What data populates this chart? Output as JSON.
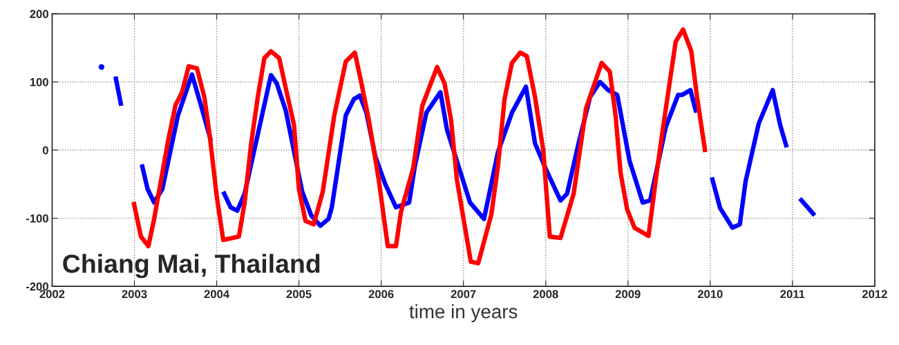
{
  "chart_data": {
    "type": "line",
    "xlabel": "time in years",
    "annotations": [
      "Chiang Mai, Thailand"
    ],
    "xlim": [
      2002,
      2012
    ],
    "xticks": [
      2002,
      2003,
      2004,
      2005,
      2006,
      2007,
      2008,
      2009,
      2010,
      2011,
      2012
    ],
    "ylim": [
      -200,
      200
    ],
    "yticks": [
      -200,
      -100,
      0,
      100,
      200
    ],
    "grid": true,
    "line_style": "solid",
    "series": [
      {
        "color": "#0000ff",
        "x": [
          2002.6,
          2002.68,
          2002.77,
          2002.84,
          2002.95,
          2003.09,
          2003.16,
          2003.24,
          2003.34,
          2003.53,
          2003.7,
          2003.82,
          2003.93,
          2004.0,
          2004.08,
          2004.17,
          2004.25,
          2004.34,
          2004.66,
          2004.73,
          2004.84,
          2005.04,
          2005.15,
          2005.26,
          2005.36,
          2005.4,
          2005.57,
          2005.67,
          2005.74,
          2005.82,
          2005.93,
          2006.05,
          2006.18,
          2006.34,
          2006.41,
          2006.55,
          2006.72,
          2006.8,
          2006.92,
          2007.08,
          2007.25,
          2007.42,
          2007.59,
          2007.76,
          2007.87,
          2008.01,
          2008.18,
          2008.26,
          2008.4,
          2008.54,
          2008.66,
          2008.76,
          2008.87,
          2009.02,
          2009.18,
          2009.27,
          2009.46,
          2009.61,
          2009.66,
          2009.76,
          2009.83,
          2009.92,
          2010.02,
          2010.12,
          2010.27,
          2010.36,
          2010.43,
          2010.59,
          2010.76,
          2010.85,
          2010.93,
          2011.0,
          2011.09,
          2011.27
        ],
        "values": [
          122,
          null,
          108,
          65,
          null,
          -21,
          -57,
          -77,
          -57,
          51,
          111,
          61,
          14,
          null,
          -61,
          -84,
          -89,
          -64,
          110,
          98,
          58,
          -61,
          -96,
          -111,
          -101,
          -84,
          51,
          75,
          80,
          55,
          -10,
          -50,
          -84,
          -77,
          -23,
          55,
          85,
          30,
          -16,
          -77,
          -101,
          -3,
          55,
          93,
          10,
          -30,
          -74,
          -64,
          10,
          78,
          100,
          88,
          81,
          -16,
          -77,
          -74,
          34,
          81,
          81,
          88,
          55,
          null,
          -40,
          -85,
          -114,
          -109,
          -46,
          39,
          88,
          37,
          4,
          null,
          -71,
          -96
        ]
      },
      {
        "color": "#ff0000",
        "x": [
          2002.99,
          2003.08,
          2003.17,
          2003.24,
          2003.33,
          2003.41,
          2003.5,
          2003.58,
          2003.66,
          2003.76,
          2003.85,
          2003.92,
          2004.0,
          2004.08,
          2004.27,
          2004.34,
          2004.42,
          2004.5,
          2004.58,
          2004.66,
          2004.76,
          2004.84,
          2004.94,
          2005.0,
          2005.08,
          2005.18,
          2005.29,
          2005.43,
          2005.57,
          2005.68,
          2005.76,
          2005.85,
          2005.97,
          2006.08,
          2006.18,
          2006.24,
          2006.39,
          2006.5,
          2006.68,
          2006.77,
          2006.85,
          2006.92,
          2007.09,
          2007.18,
          2007.34,
          2007.42,
          2007.5,
          2007.59,
          2007.69,
          2007.77,
          2007.87,
          2007.97,
          2008.05,
          2008.18,
          2008.34,
          2008.49,
          2008.68,
          2008.78,
          2008.85,
          2008.91,
          2008.99,
          2009.08,
          2009.25,
          2009.35,
          2009.44,
          2009.58,
          2009.67,
          2009.77,
          2009.84,
          2009.94
        ],
        "values": [
          -76,
          -127,
          -141,
          -101,
          -40,
          14,
          66,
          85,
          123,
          120,
          78,
          17,
          -67,
          -132,
          -127,
          -77,
          10,
          78,
          135,
          145,
          135,
          91,
          37,
          -57,
          -104,
          -109,
          -61,
          51,
          130,
          143,
          98,
          44,
          -43,
          -141,
          -141,
          -91,
          -26,
          65,
          122,
          98,
          44,
          -43,
          -164,
          -166,
          -94,
          -23,
          75,
          128,
          143,
          138,
          78,
          0,
          -127,
          -129,
          -64,
          61,
          128,
          115,
          50,
          -33,
          -87,
          -114,
          -126,
          -33,
          44,
          159,
          177,
          145,
          78,
          -3
        ]
      }
    ]
  }
}
